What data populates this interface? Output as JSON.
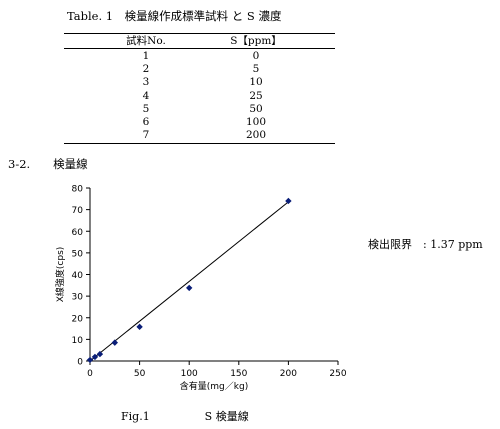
{
  "table": {
    "title": "Table. 1　検量線作成標準試料 と S 濃度",
    "headers": [
      "試料No.",
      "S【ppm】"
    ],
    "rows": [
      [
        "1",
        "0"
      ],
      [
        "2",
        "5"
      ],
      [
        "3",
        "10"
      ],
      [
        "4",
        "25"
      ],
      [
        "5",
        "50"
      ],
      [
        "6",
        "100"
      ],
      [
        "7",
        "200"
      ]
    ]
  },
  "section_heading": "3-2.　　検量線",
  "detection_limit": "検出限界　:  1.37  ppm",
  "figure_caption": "Fig.1　　　　　S  検量線",
  "chart_data": {
    "type": "scatter",
    "title": "",
    "xlabel": "含有量(mg／kg)",
    "ylabel": "X線強度(cps)",
    "xlim": [
      0,
      250
    ],
    "ylim": [
      0,
      80
    ],
    "x_ticks": [
      0,
      50,
      100,
      150,
      200,
      250
    ],
    "y_ticks": [
      0,
      10,
      20,
      30,
      40,
      50,
      60,
      70,
      80
    ],
    "grid": false,
    "legend": "none",
    "marker_color": "#0a1e78",
    "series": [
      {
        "x": [
          0,
          5,
          10,
          25,
          50,
          100,
          200
        ],
        "y": [
          0.5,
          1.9,
          3.2,
          8.5,
          15.8,
          33.8,
          74.0
        ]
      }
    ],
    "trendline": {
      "x": [
        0,
        200
      ],
      "y": [
        0.0,
        73.6
      ]
    }
  }
}
